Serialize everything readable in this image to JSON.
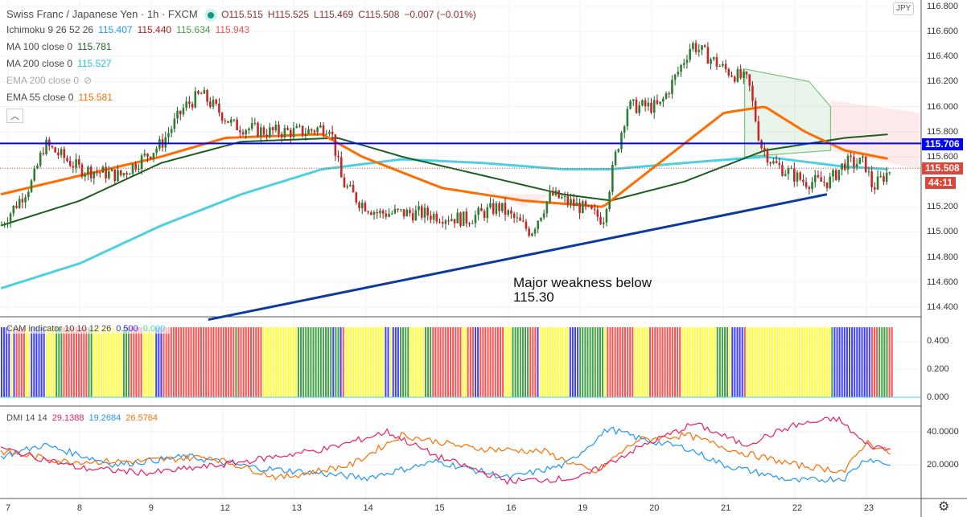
{
  "header": {
    "symbol": "Swiss Franc / Japanese Yen · 1h · FXCM",
    "open": "O115.515",
    "high": "H115.525",
    "low": "L115.469",
    "close": "C115.508",
    "change": "−0.007 (−0.01%)"
  },
  "indicators": {
    "ichimoku": {
      "label": "Ichimoku 9 26 52 26",
      "v1": "115.407",
      "v2": "115.440",
      "v3": "115.634",
      "v4": "115.943"
    },
    "ma100": {
      "label": "MA 100 close 0",
      "value": "115.781"
    },
    "ma200": {
      "label": "MA 200 close 0",
      "value": "115.527"
    },
    "ema200": {
      "label": "EMA 200 close 0"
    },
    "ema55": {
      "label": "EMA 55 close 0",
      "value": "115.581"
    },
    "cam": {
      "label": "CAM indicator 10 10 12 26",
      "v1": "0.500",
      "v2": "0.000"
    },
    "dmi": {
      "label": "DMI 14 14",
      "v1": "29.1388",
      "v2": "19.2684",
      "v3": "26.5764"
    }
  },
  "price_axis": {
    "currency": "JPY",
    "ticks": [
      "116.800",
      "116.600",
      "116.400",
      "116.200",
      "116.000",
      "115.800",
      "115.600",
      "115.200",
      "115.000",
      "114.800",
      "114.600",
      "114.400"
    ],
    "hline_label": "115.706",
    "last_price": "115.508",
    "countdown": "44:11"
  },
  "cam_axis": [
    "0.400",
    "0.200",
    "0.000"
  ],
  "dmi_axis": [
    "40.0000",
    "20.0000"
  ],
  "time_axis": [
    "7",
    "8",
    "9",
    "12",
    "13",
    "14",
    "15",
    "16",
    "19",
    "20",
    "21",
    "22",
    "23"
  ],
  "annotation": {
    "line1": "Major weakness below",
    "line2": "115.30"
  },
  "colors": {
    "up": "#26a69a",
    "down": "#ef5350",
    "ma200": "#4dd0e1",
    "ma100": "#1b5e20",
    "ema55": "#ff6d00",
    "hline": "#0000ff",
    "trend": "#0d3a9e"
  },
  "chart_data": {
    "type": "candlestick",
    "hline": 115.706,
    "trendline": [
      [
        2.8,
        114.3
      ],
      [
        11.45,
        115.3
      ]
    ],
    "price": [
      [
        -0.1,
        115.05
      ],
      [
        0.34,
        115.4
      ],
      [
        0.51,
        115.7
      ],
      [
        1.01,
        115.5
      ],
      [
        1.57,
        115.45
      ],
      [
        2.14,
        115.7
      ],
      [
        2.47,
        116.0
      ],
      [
        2.7,
        116.1
      ],
      [
        3.15,
        115.85
      ],
      [
        3.6,
        115.8
      ],
      [
        4.16,
        115.8
      ],
      [
        4.5,
        115.85
      ],
      [
        4.67,
        115.4
      ],
      [
        4.89,
        115.25
      ],
      [
        5.17,
        115.15
      ],
      [
        5.74,
        115.15
      ],
      [
        6.41,
        115.1
      ],
      [
        6.86,
        115.2
      ],
      [
        7.31,
        115.0
      ],
      [
        7.59,
        115.3
      ],
      [
        7.99,
        115.2
      ],
      [
        8.32,
        115.1
      ],
      [
        8.49,
        115.6
      ],
      [
        8.66,
        116.0
      ],
      [
        9.11,
        116.0
      ],
      [
        9.39,
        116.3
      ],
      [
        9.56,
        116.5
      ],
      [
        10.01,
        116.3
      ],
      [
        10.35,
        116.2
      ],
      [
        10.52,
        115.7
      ],
      [
        10.69,
        115.55
      ],
      [
        11.14,
        115.4
      ],
      [
        11.48,
        115.4
      ],
      [
        11.7,
        115.55
      ],
      [
        11.98,
        115.55
      ],
      [
        12.09,
        115.35
      ],
      [
        12.34,
        115.5
      ]
    ],
    "ma200": [
      [
        -0.1,
        114.55
      ],
      [
        1.01,
        114.75
      ],
      [
        2.14,
        115.05
      ],
      [
        3.26,
        115.3
      ],
      [
        4.39,
        115.5
      ],
      [
        5.51,
        115.58
      ],
      [
        6.64,
        115.55
      ],
      [
        7.76,
        115.5
      ],
      [
        8.43,
        115.5
      ],
      [
        9.45,
        115.55
      ],
      [
        10.58,
        115.6
      ],
      [
        11.7,
        115.52
      ],
      [
        12.34,
        115.5
      ]
    ],
    "ma100": [
      [
        -0.1,
        115.05
      ],
      [
        1.01,
        115.25
      ],
      [
        2.14,
        115.55
      ],
      [
        3.26,
        115.72
      ],
      [
        4.61,
        115.75
      ],
      [
        5.51,
        115.6
      ],
      [
        6.64,
        115.45
      ],
      [
        7.76,
        115.3
      ],
      [
        8.43,
        115.25
      ],
      [
        9.45,
        115.4
      ],
      [
        10.58,
        115.65
      ],
      [
        11.7,
        115.75
      ],
      [
        12.34,
        115.78
      ]
    ],
    "ema55": [
      [
        -0.1,
        115.3
      ],
      [
        1.01,
        115.45
      ],
      [
        2.14,
        115.6
      ],
      [
        3.04,
        115.75
      ],
      [
        4.39,
        115.78
      ],
      [
        4.95,
        115.6
      ],
      [
        6.07,
        115.35
      ],
      [
        7.2,
        115.25
      ],
      [
        8.32,
        115.2
      ],
      [
        9.22,
        115.6
      ],
      [
        10.01,
        115.95
      ],
      [
        10.58,
        116.0
      ],
      [
        11.14,
        115.8
      ],
      [
        11.7,
        115.65
      ],
      [
        12.34,
        115.58
      ]
    ],
    "dmi_plus": [
      [
        -0.1,
        25
      ],
      [
        0.5,
        32
      ],
      [
        1.5,
        20
      ],
      [
        2.5,
        25
      ],
      [
        3.5,
        18
      ],
      [
        4.3,
        15
      ],
      [
        5.0,
        12
      ],
      [
        6.0,
        22
      ],
      [
        7.0,
        12
      ],
      [
        7.8,
        20
      ],
      [
        8.4,
        42
      ],
      [
        8.9,
        35
      ],
      [
        9.5,
        30
      ],
      [
        10.0,
        20
      ],
      [
        11.0,
        10
      ],
      [
        11.7,
        12
      ],
      [
        12.0,
        24
      ],
      [
        12.34,
        20
      ]
    ],
    "dmi_minus": [
      [
        -0.1,
        28
      ],
      [
        0.8,
        22
      ],
      [
        1.8,
        22
      ],
      [
        2.8,
        25
      ],
      [
        3.8,
        12
      ],
      [
        4.8,
        20
      ],
      [
        5.5,
        38
      ],
      [
        6.5,
        30
      ],
      [
        7.5,
        28
      ],
      [
        8.2,
        15
      ],
      [
        8.8,
        35
      ],
      [
        9.5,
        38
      ],
      [
        10.2,
        28
      ],
      [
        11.0,
        20
      ],
      [
        11.7,
        16
      ],
      [
        12.0,
        34
      ],
      [
        12.34,
        27
      ]
    ],
    "adx": [
      [
        -0.1,
        30
      ],
      [
        1.0,
        18
      ],
      [
        2.0,
        15
      ],
      [
        3.0,
        20
      ],
      [
        4.5,
        30
      ],
      [
        5.3,
        40
      ],
      [
        6.0,
        25
      ],
      [
        7.0,
        10
      ],
      [
        8.0,
        12
      ],
      [
        8.8,
        30
      ],
      [
        9.6,
        45
      ],
      [
        10.3,
        32
      ],
      [
        11.0,
        44
      ],
      [
        11.6,
        48
      ],
      [
        12.0,
        32
      ],
      [
        12.34,
        29
      ]
    ]
  }
}
